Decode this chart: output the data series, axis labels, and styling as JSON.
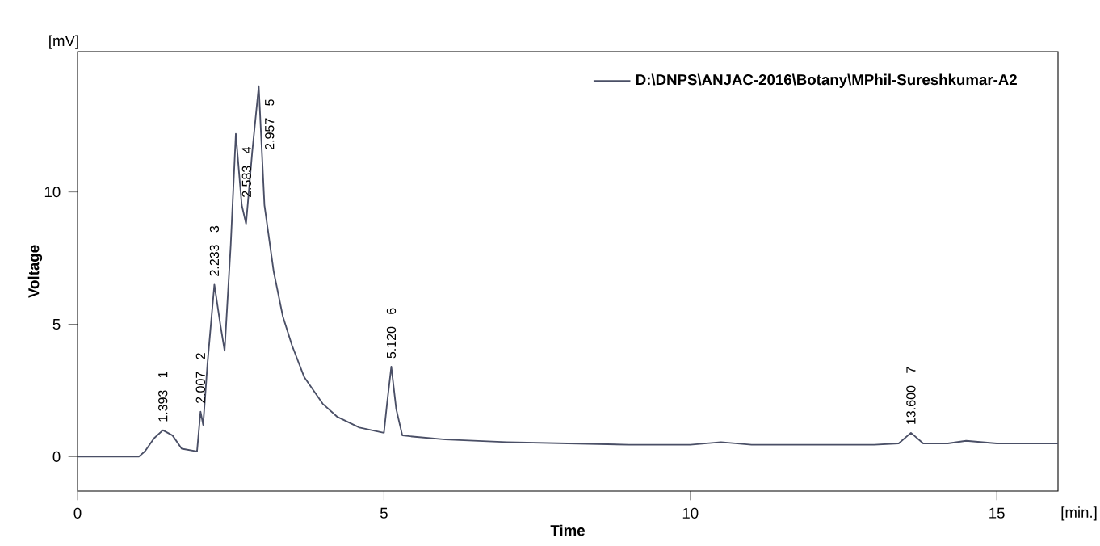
{
  "chart_data": {
    "type": "line",
    "xlabel": "Time",
    "ylabel": "Voltage",
    "xlim": [
      0,
      16
    ],
    "ylim": [
      -1.3,
      15.3
    ],
    "xticks": [
      0,
      5,
      10,
      15
    ],
    "yticks": [
      0,
      5,
      10
    ],
    "legend": "top right",
    "grid": false,
    "marker": "none",
    "line_style": "solid",
    "series": [
      {
        "name": "D:\\DNPS\\ANJAC-2016\\Botany\\MPhil-Sureshkumar-A2",
        "color": "#4a4f66",
        "x": [
          0,
          1.0,
          1.1,
          1.25,
          1.393,
          1.55,
          1.7,
          1.95,
          2.007,
          2.05,
          2.12,
          2.233,
          2.33,
          2.4,
          2.5,
          2.583,
          2.68,
          2.75,
          2.85,
          2.957,
          3.05,
          3.2,
          3.35,
          3.5,
          3.7,
          4.0,
          4.24,
          4.6,
          5.0,
          5.05,
          5.12,
          5.2,
          5.3,
          5.5,
          6.0,
          7,
          8,
          9,
          10,
          10.5,
          11,
          12,
          13,
          13.4,
          13.6,
          13.8,
          14.2,
          14.5,
          15,
          16
        ],
        "values": [
          0,
          0,
          0.2,
          0.7,
          1.0,
          0.8,
          0.3,
          0.2,
          1.7,
          1.2,
          3.5,
          6.5,
          5.0,
          4.0,
          8.0,
          12.2,
          9.5,
          8.8,
          11.5,
          14.0,
          9.5,
          7.0,
          5.3,
          4.2,
          3.0,
          2.0,
          1.5,
          1.1,
          0.9,
          2.0,
          3.4,
          1.8,
          0.8,
          0.75,
          0.65,
          0.55,
          0.5,
          0.45,
          0.45,
          0.55,
          0.45,
          0.45,
          0.45,
          0.5,
          0.9,
          0.5,
          0.5,
          0.6,
          0.5,
          0.5
        ]
      }
    ],
    "annotations": [
      "[mV]",
      "[min.]",
      {
        "text": "1.393",
        "x": 1.393,
        "y": 1.0
      },
      "1",
      {
        "text": "2.007",
        "x": 2.007,
        "y": 1.7
      },
      "2",
      {
        "text": "2.233",
        "x": 2.233,
        "y": 6.5
      },
      "3",
      {
        "text": "2.583",
        "x": 2.583,
        "y": 12.2
      },
      "4",
      {
        "text": "2.957",
        "x": 2.957,
        "y": 14.0
      },
      "5",
      {
        "text": "5.120",
        "x": 5.12,
        "y": 3.4
      },
      "6",
      {
        "text": "13.600",
        "x": 13.6,
        "y": 0.9
      },
      "7"
    ]
  }
}
